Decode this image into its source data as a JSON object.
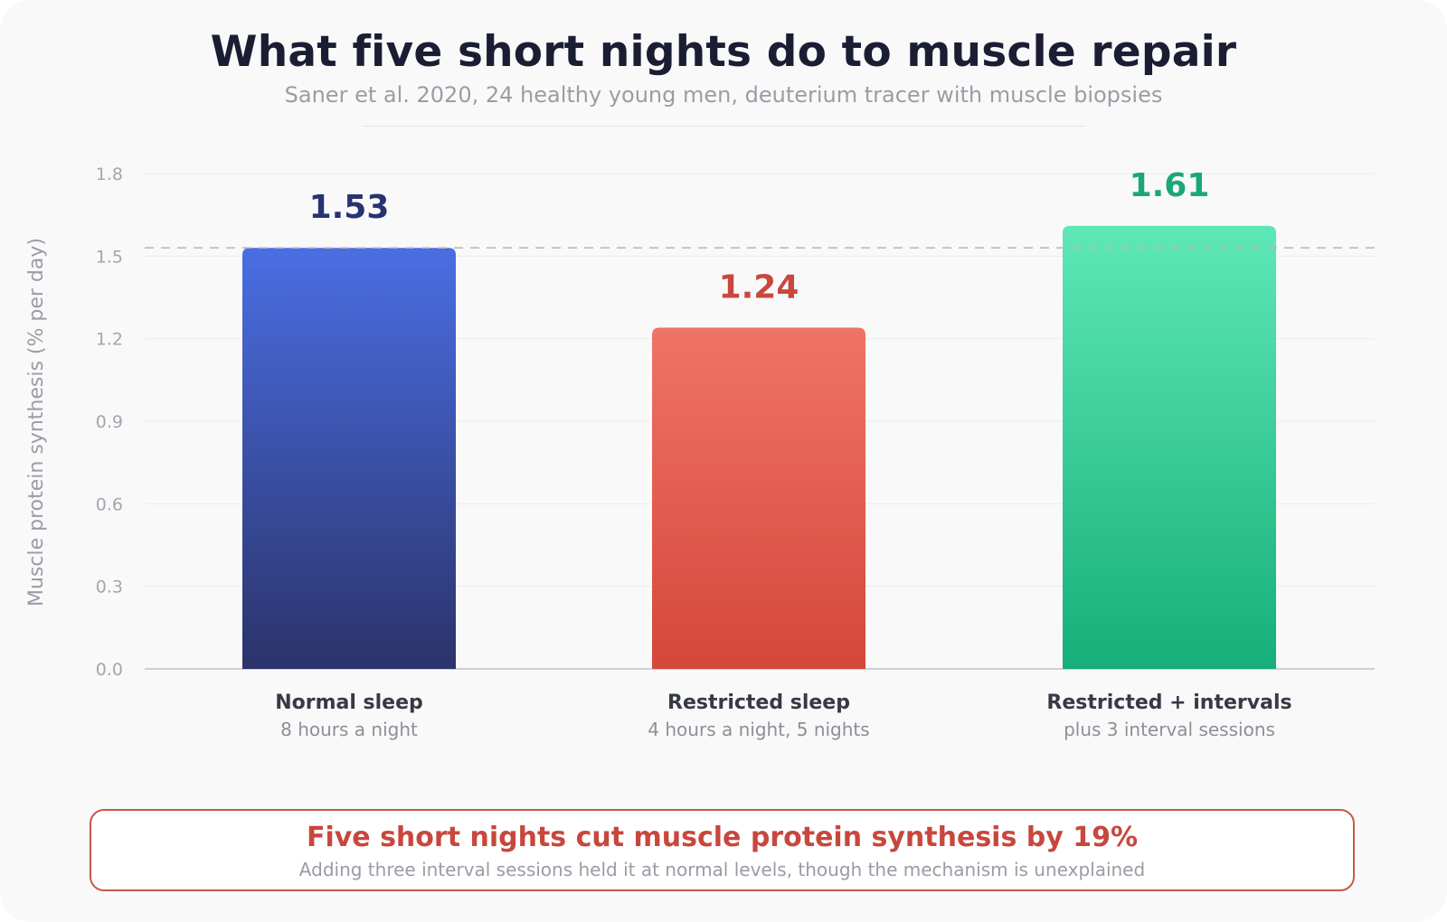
{
  "header": {
    "title": "What five short nights do to muscle repair",
    "subtitle": "Saner et al. 2020, 24 healthy young men, deuterium tracer with muscle biopsies"
  },
  "chart_data": {
    "type": "bar",
    "title": "What five short nights do to muscle repair",
    "subtitle": "Saner et al. 2020, 24 healthy young men, deuterium tracer with muscle biopsies",
    "ylabel": "Muscle protein synthesis (% per day)",
    "xlabel": "",
    "ylim": [
      0,
      1.8
    ],
    "yticks": [
      0.0,
      0.3,
      0.6,
      0.9,
      1.2,
      1.5,
      1.8
    ],
    "ytick_labels": [
      "0.0",
      "0.3",
      "0.6",
      "0.9",
      "1.2",
      "1.5",
      "1.8"
    ],
    "grid": true,
    "reference_line": {
      "value": 1.53,
      "style": "dashed"
    },
    "categories": [
      "Normal sleep",
      "Restricted sleep",
      "Restricted + intervals"
    ],
    "category_sublabels": [
      "8 hours a night",
      "4 hours a night, 5 nights",
      "plus 3 interval sessions"
    ],
    "values": [
      1.53,
      1.24,
      1.61
    ],
    "value_labels": [
      "1.53",
      "1.24",
      "1.61"
    ],
    "colors": {
      "normal_top": "#4a6ee3",
      "normal_bottom": "#2b336a",
      "normal_label": "#283470",
      "restricted_top": "#ef7466",
      "restricted_bottom": "#d5473b",
      "restricted_label": "#c9483d",
      "intervals_top": "#5ee8b7",
      "intervals_bottom": "#16af79",
      "intervals_label": "#1aa878"
    }
  },
  "callout": {
    "headline": "Five short nights cut muscle protein synthesis by 19%",
    "detail": "Adding three interval sessions held it at normal levels, though the mechanism is unexplained"
  }
}
